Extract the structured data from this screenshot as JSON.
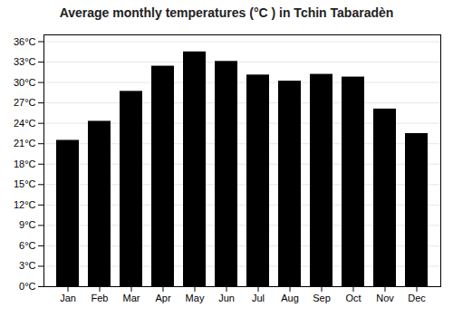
{
  "chart_data": {
    "type": "bar",
    "title": "Average monthly temperatures (°C ) in Tchin Tabaradèn",
    "categories": [
      "Jan",
      "Feb",
      "Mar",
      "Apr",
      "May",
      "Jun",
      "Jul",
      "Aug",
      "Sep",
      "Oct",
      "Nov",
      "Dec"
    ],
    "values": [
      21.5,
      24.3,
      28.7,
      32.4,
      34.5,
      33.1,
      31.1,
      30.2,
      31.2,
      30.8,
      26.1,
      22.5
    ],
    "ylim": [
      0,
      37
    ],
    "yticks": [
      {
        "value": 0,
        "label": "0°C"
      },
      {
        "value": 3,
        "label": "3°C"
      },
      {
        "value": 6,
        "label": "6°C"
      },
      {
        "value": 9,
        "label": "9°C"
      },
      {
        "value": 12,
        "label": "12°C"
      },
      {
        "value": 15,
        "label": "15°C"
      },
      {
        "value": 18,
        "label": "18°C"
      },
      {
        "value": 21,
        "label": "21°C"
      },
      {
        "value": 24,
        "label": "24°C"
      },
      {
        "value": 27,
        "label": "27°C"
      },
      {
        "value": 30,
        "label": "30°C"
      },
      {
        "value": 33,
        "label": "33°C"
      },
      {
        "value": 36,
        "label": "36°C"
      }
    ],
    "grid": true
  }
}
